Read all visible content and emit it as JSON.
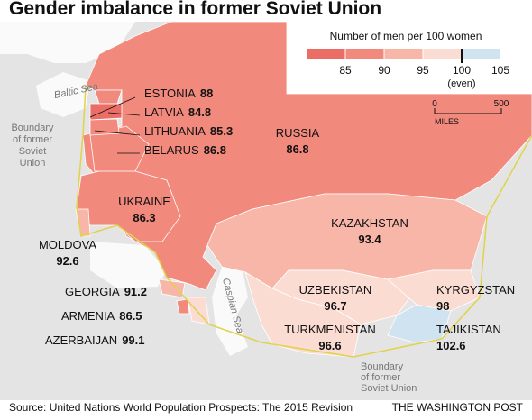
{
  "title": "Gender imbalance in former Soviet Union",
  "legend": {
    "title": "Number of men per 100 women",
    "ticks": [
      85,
      90,
      95,
      100,
      105
    ],
    "even_label": "(even)",
    "colors": [
      "#ec6d66",
      "#f2897d",
      "#f7b6a8",
      "#fbdcd2",
      "#cfe3f1"
    ]
  },
  "scale": {
    "start": 0,
    "end": 500,
    "unit": "MILES"
  },
  "seas": {
    "baltic": "Baltic Sea",
    "caspian": "Caspian Sea"
  },
  "boundary_west": [
    "Boundary",
    "of former",
    "Soviet",
    "Union"
  ],
  "boundary_south": [
    "Boundary",
    "of former",
    "Soviet Union"
  ],
  "countries": [
    {
      "name": "ESTONIA",
      "value": 88
    },
    {
      "name": "LATVIA",
      "value": 84.8
    },
    {
      "name": "LITHUANIA",
      "value": 85.3
    },
    {
      "name": "BELARUS",
      "value": 86.8
    },
    {
      "name": "RUSSIA",
      "value": 86.8
    },
    {
      "name": "UKRAINE",
      "value": 86.3
    },
    {
      "name": "MOLDOVA",
      "value": 92.6
    },
    {
      "name": "GEORGIA",
      "value": 91.2
    },
    {
      "name": "ARMENIA",
      "value": 86.5
    },
    {
      "name": "AZERBAIJAN",
      "value": 99.1
    },
    {
      "name": "KAZAKHSTAN",
      "value": 93.4
    },
    {
      "name": "UZBEKISTAN",
      "value": 96.7
    },
    {
      "name": "TURKMENISTAN",
      "value": 96.6
    },
    {
      "name": "KYRGYZSTAN",
      "value": 98
    },
    {
      "name": "TAJIKISTAN",
      "value": 102.6
    }
  ],
  "source": "Source: United Nations World Population Prospects: The 2015 Revision",
  "credit": "THE WASHINGTON POST"
}
